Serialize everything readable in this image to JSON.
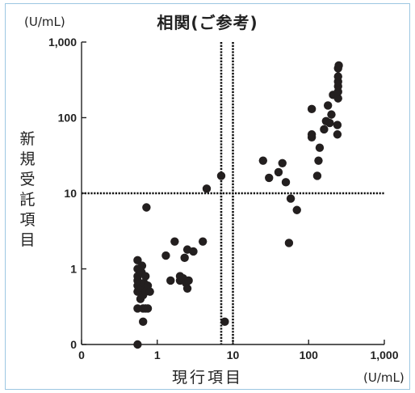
{
  "chart_data": {
    "type": "scatter",
    "title": "相関(ご参考)",
    "xlabel": "現行項目",
    "ylabel": "新規受託項目",
    "x_unit": "(U/mL)",
    "y_unit": "(U/mL)",
    "scale": "log",
    "xlim": [
      0.1,
      1000
    ],
    "ylim": [
      0.1,
      1000
    ],
    "x_ticks": [
      {
        "value": 0.1,
        "label": "0"
      },
      {
        "value": 1,
        "label": "1"
      },
      {
        "value": 10,
        "label": "10"
      },
      {
        "value": 100,
        "label": "100"
      },
      {
        "value": 1000,
        "label": "1,000"
      }
    ],
    "y_ticks": [
      {
        "value": 0.1,
        "label": "0"
      },
      {
        "value": 1,
        "label": "1"
      },
      {
        "value": 10,
        "label": "10"
      },
      {
        "value": 100,
        "label": "100"
      },
      {
        "value": 1000,
        "label": "1,000"
      }
    ],
    "reference_lines": {
      "x": [
        7,
        10
      ],
      "y": [
        10
      ]
    },
    "grid": false,
    "colors": {
      "marker": "#231f1f",
      "axis": "#222222",
      "reference": "#111111",
      "border": "#9cc7e2"
    },
    "points": [
      [
        0.55,
        0.1
      ],
      [
        0.55,
        0.3
      ],
      [
        0.55,
        0.5
      ],
      [
        0.55,
        0.6
      ],
      [
        0.55,
        0.7
      ],
      [
        0.55,
        0.8
      ],
      [
        0.55,
        1.0
      ],
      [
        0.55,
        1.3
      ],
      [
        0.6,
        0.4
      ],
      [
        0.62,
        0.55
      ],
      [
        0.62,
        0.9
      ],
      [
        0.63,
        1.1
      ],
      [
        0.65,
        0.2
      ],
      [
        0.65,
        0.3
      ],
      [
        0.65,
        0.45
      ],
      [
        0.67,
        0.65
      ],
      [
        0.7,
        0.3
      ],
      [
        0.7,
        0.5
      ],
      [
        0.7,
        0.8
      ],
      [
        0.72,
        6.5
      ],
      [
        0.75,
        0.3
      ],
      [
        0.75,
        0.6
      ],
      [
        0.8,
        0.5
      ],
      [
        1.3,
        1.5
      ],
      [
        1.5,
        0.7
      ],
      [
        1.7,
        2.3
      ],
      [
        2.0,
        0.7
      ],
      [
        2.0,
        0.8
      ],
      [
        2.2,
        0.75
      ],
      [
        2.3,
        1.4
      ],
      [
        2.4,
        0.65
      ],
      [
        2.5,
        0.55
      ],
      [
        2.5,
        1.8
      ],
      [
        2.6,
        0.7
      ],
      [
        3.0,
        1.7
      ],
      [
        4.0,
        2.3
      ],
      [
        4.5,
        11.5
      ],
      [
        7.0,
        17
      ],
      [
        7.8,
        0.2
      ],
      [
        25,
        27
      ],
      [
        30,
        16
      ],
      [
        40,
        19
      ],
      [
        45,
        25
      ],
      [
        50,
        14
      ],
      [
        55,
        2.2
      ],
      [
        58,
        8.5
      ],
      [
        70,
        6
      ],
      [
        110,
        55
      ],
      [
        110,
        60
      ],
      [
        110,
        130
      ],
      [
        130,
        17
      ],
      [
        135,
        27
      ],
      [
        140,
        40
      ],
      [
        160,
        70
      ],
      [
        170,
        90
      ],
      [
        180,
        145
      ],
      [
        190,
        85
      ],
      [
        200,
        110
      ],
      [
        210,
        200
      ],
      [
        240,
        60
      ],
      [
        240,
        80
      ],
      [
        245,
        180
      ],
      [
        245,
        220
      ],
      [
        245,
        260
      ],
      [
        245,
        300
      ],
      [
        245,
        350
      ],
      [
        245,
        450
      ],
      [
        250,
        490
      ]
    ]
  }
}
